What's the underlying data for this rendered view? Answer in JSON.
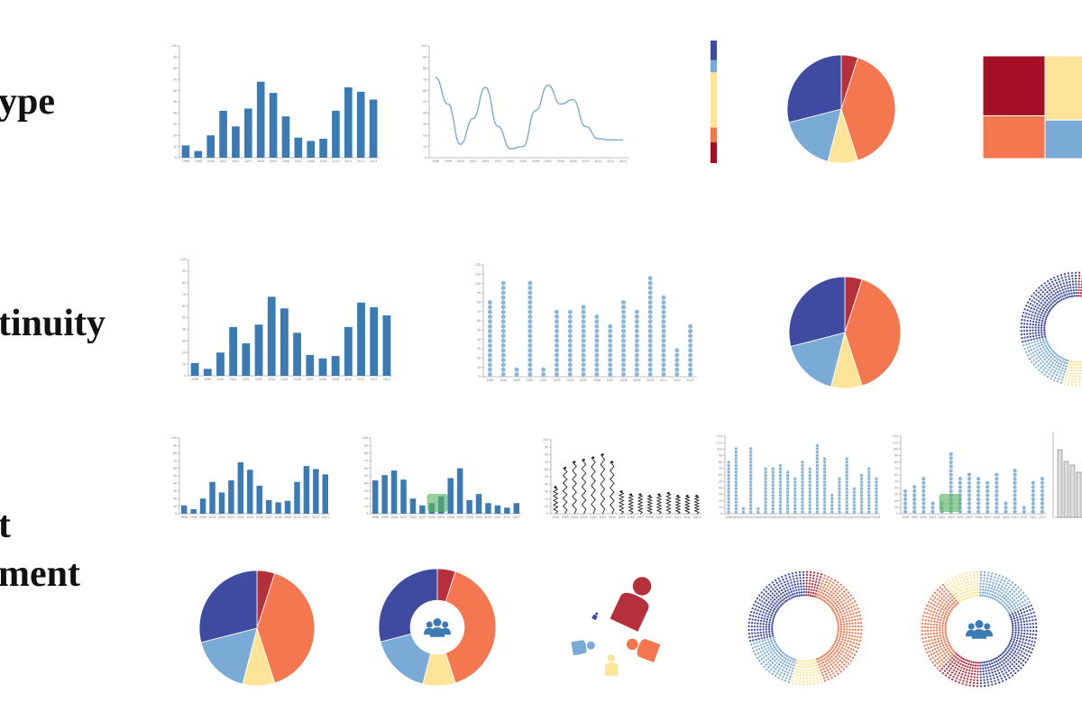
{
  "labels": {
    "row1": "ype",
    "row2": "tinuity",
    "row3a": "t",
    "row3b": "ment"
  },
  "palette": {
    "blue": "#3a7ab5",
    "lightblue": "#8cb6d9",
    "navy": "#3f4ba0",
    "steel": "#7aaad6",
    "yellow": "#fde499",
    "orange": "#f4774f",
    "red": "#b5303a",
    "crimson": "#a50f26",
    "green": "#5ab565"
  },
  "chart_data": [
    {
      "type": "bar",
      "id": "year-bars",
      "categories": [
        "1998",
        "1999",
        "2000",
        "2001",
        "2002",
        "2003",
        "2004",
        "2005",
        "2006",
        "2007",
        "2008",
        "2009",
        "2010",
        "2011",
        "2012",
        "2013"
      ],
      "values": [
        11,
        6,
        20,
        42,
        28,
        44,
        68,
        58,
        37,
        18,
        15,
        17,
        42,
        63,
        59,
        52
      ],
      "ylim": [
        0,
        100
      ],
      "yticks": [
        "0",
        "10",
        "20",
        "30",
        "40",
        "50",
        "60",
        "70",
        "80",
        "90",
        "100"
      ],
      "grid": false
    },
    {
      "type": "line",
      "id": "year-line",
      "x": [
        "1998",
        "1999",
        "2000",
        "2001",
        "2002",
        "2003",
        "2004",
        "2005",
        "2006",
        "2007",
        "2008",
        "2009",
        "2010",
        "2011",
        "2012",
        "2013"
      ],
      "values": [
        72,
        48,
        12,
        35,
        63,
        28,
        8,
        10,
        42,
        65,
        48,
        52,
        28,
        17,
        16,
        16
      ],
      "ylim": [
        0,
        100
      ],
      "yticks": [
        "0",
        "10",
        "20",
        "30",
        "40",
        "50",
        "60",
        "70",
        "80",
        "90",
        "100"
      ]
    },
    {
      "type": "bar",
      "id": "stacked-strip",
      "categories": [
        "navy",
        "steel",
        "yellow",
        "orange",
        "crimson"
      ],
      "values": [
        16,
        10,
        45,
        12,
        17
      ]
    },
    {
      "type": "pie",
      "id": "pie",
      "categories": [
        "red",
        "orange",
        "yellow",
        "steel",
        "navy"
      ],
      "values": [
        5,
        40,
        9,
        17,
        29
      ]
    },
    {
      "type": "heatmap",
      "id": "treemap",
      "categories": [
        "crimson",
        "yellow",
        "orange",
        "steel"
      ],
      "values": [
        35,
        25,
        25,
        15
      ]
    },
    {
      "type": "bar",
      "id": "dots-per-year",
      "categories": [
        "1998",
        "1999",
        "2000",
        "2001",
        "2002",
        "2003",
        "2004",
        "2005",
        "2006",
        "2007",
        "2008",
        "2009",
        "2010",
        "2011",
        "2012",
        "2013"
      ],
      "values": [
        80,
        102,
        10,
        103,
        10,
        71,
        71,
        78,
        67,
        58,
        85,
        73,
        107,
        87,
        33,
        59
      ],
      "ylim": [
        0,
        120
      ],
      "yticks": [
        "0",
        "10",
        "20",
        "30",
        "40",
        "50",
        "60",
        "70",
        "80",
        "90",
        "100",
        "110",
        "120"
      ]
    }
  ]
}
